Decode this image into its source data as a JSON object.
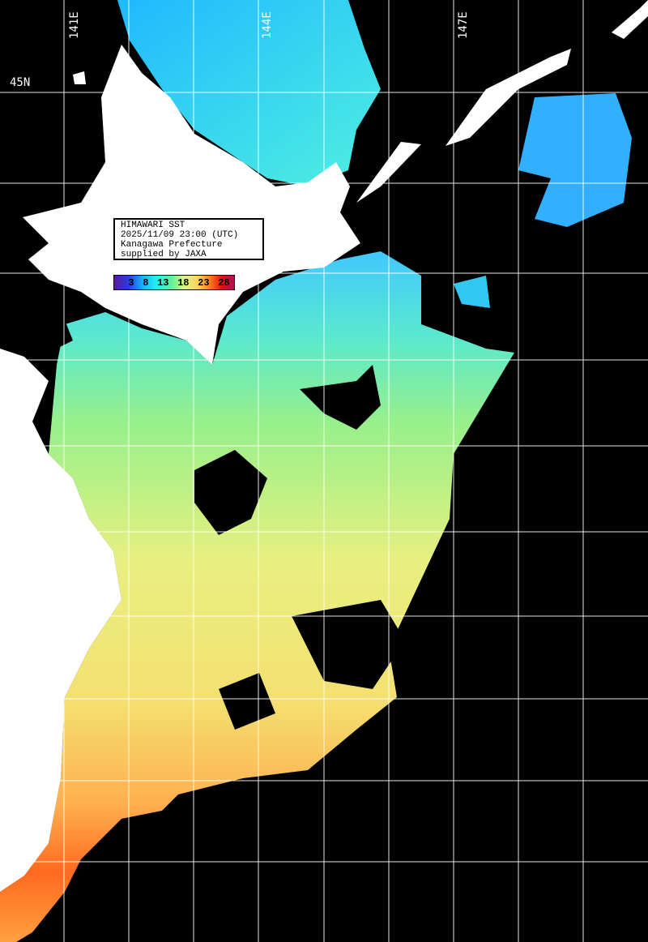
{
  "info": {
    "lines": [
      "HIMAWARI SST",
      "2025/11/09 23:00 (UTC)",
      "Kanagawa Prefecture",
      "supplied by JAXA"
    ]
  },
  "legend": {
    "ticks": [
      "3",
      "8",
      "13",
      "18",
      "23",
      "28"
    ],
    "colors": [
      "#5a1a9a",
      "#18b4ff",
      "#60f09a",
      "#d8f880",
      "#ffd060",
      "#ff7a20",
      "#e01010"
    ]
  },
  "grid": {
    "lon_labels": [
      "141E",
      "144E",
      "147E"
    ],
    "lat_labels": [
      "45N"
    ]
  }
}
